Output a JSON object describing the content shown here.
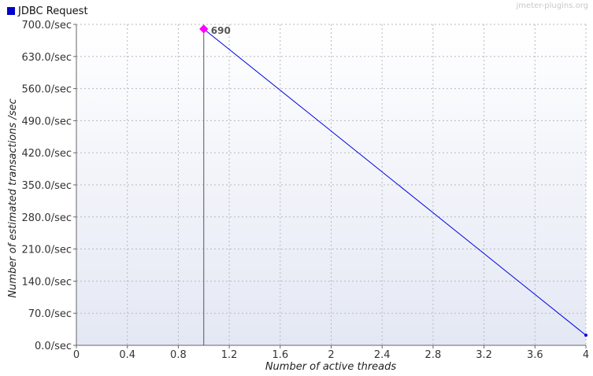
{
  "legend": {
    "label": "JDBC Request",
    "color": "#0000cc"
  },
  "watermark": "jmeter-plugins.org",
  "colors": {
    "series": "#0000dd",
    "highlight": "#ff00ff",
    "grid": "#b8b8c0"
  },
  "chart_data": {
    "type": "line",
    "title": "",
    "xlabel": "Number of active threads",
    "ylabel": "Number of estimated transactions /sec",
    "xlim": [
      0,
      4
    ],
    "ylim": [
      0,
      700
    ],
    "x_ticks": [
      "0",
      "0.4",
      "0.8",
      "1.2",
      "1.6",
      "2",
      "2.4",
      "2.8",
      "3.2",
      "3.6",
      "4"
    ],
    "y_ticks": [
      "0.0/sec",
      "70.0/sec",
      "140.0/sec",
      "210.0/sec",
      "280.0/sec",
      "350.0/sec",
      "420.0/sec",
      "490.0/sec",
      "560.0/sec",
      "630.0/sec",
      "700.0/sec"
    ],
    "grid": true,
    "legend_position": "top-left",
    "series": [
      {
        "name": "JDBC Request",
        "x": [
          1,
          4
        ],
        "y": [
          690,
          22
        ]
      }
    ],
    "annotations": [
      {
        "x": 1,
        "y": 690,
        "text": "690"
      }
    ]
  }
}
